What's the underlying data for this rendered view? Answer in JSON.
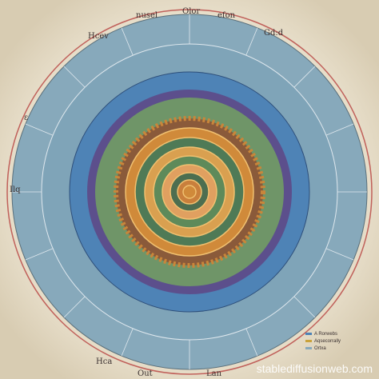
{
  "labels": [
    "nusel",
    "Olor",
    "efon",
    "Gd:d",
    "Hcev",
    "ε",
    "Ilq",
    "Out",
    "Lan",
    "Hca"
  ],
  "legend": [
    "A Rorwebs",
    "Aqsecorrally",
    "Ortxa"
  ],
  "watermark": "stablediffusionweb.com"
}
